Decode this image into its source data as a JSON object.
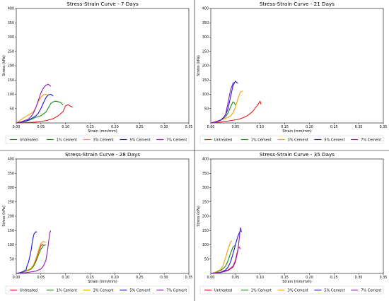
{
  "colors": {
    "Untreated": "#e31a1c",
    "1% Cement": "#1a8a1a",
    "3% Cement": "#f5a000",
    "5% Cement": "#1a1ad6",
    "7% Cement": "#8e1ab8"
  },
  "legend_labels": [
    "Untreated",
    "1% Cement",
    "3% Cement",
    "5% Cement",
    "7% Cement"
  ],
  "chart_data": [
    {
      "type": "line",
      "title": "Stress-Strain Curve - 7 Days",
      "xlabel": "Strain (mm/mm)",
      "ylabel": "Stress (kPa)",
      "xlim": [
        0,
        0.35
      ],
      "ylim": [
        0,
        400
      ],
      "xticks": [
        "0.00",
        "0.05",
        "0.10",
        "0.15",
        "0.20",
        "0.25",
        "0.30",
        "0.35"
      ],
      "yticks": [
        "50",
        "100",
        "150",
        "200",
        "250",
        "300",
        "350",
        "400"
      ],
      "legend_position": "below",
      "series": [
        {
          "name": "Untreated",
          "x": [
            0,
            0.02,
            0.04,
            0.06,
            0.075,
            0.085,
            0.095,
            0.1,
            0.105,
            0.11,
            0.115
          ],
          "y": [
            0,
            1,
            3,
            8,
            15,
            25,
            40,
            60,
            64,
            58,
            55
          ]
        },
        {
          "name": "1% Cement",
          "x": [
            0,
            0.01,
            0.02,
            0.03,
            0.04,
            0.05,
            0.06,
            0.065,
            0.07,
            0.075,
            0.08,
            0.09,
            0.095
          ],
          "y": [
            0,
            2,
            6,
            12,
            20,
            25,
            38,
            52,
            68,
            74,
            76,
            72,
            63
          ]
        },
        {
          "name": "3% Cement",
          "x": [
            0,
            0.005,
            0.01,
            0.015,
            0.02,
            0.025,
            0.03,
            0.035,
            0.04,
            0.045,
            0.05,
            0.055,
            0.06,
            0.065
          ],
          "y": [
            0,
            5,
            12,
            18,
            23,
            28,
            33,
            40,
            55,
            75,
            90,
            98,
            100,
            96
          ]
        },
        {
          "name": "5% Cement",
          "x": [
            0,
            0.01,
            0.02,
            0.025,
            0.03,
            0.035,
            0.04,
            0.045,
            0.05,
            0.055,
            0.06,
            0.065,
            0.07,
            0.075
          ],
          "y": [
            0,
            3,
            7,
            10,
            15,
            20,
            25,
            35,
            50,
            70,
            88,
            98,
            100,
            94
          ]
        },
        {
          "name": "7% Cement",
          "x": [
            0,
            0.005,
            0.01,
            0.015,
            0.02,
            0.025,
            0.03,
            0.035,
            0.04,
            0.045,
            0.05,
            0.055,
            0.06,
            0.065,
            0.07
          ],
          "y": [
            0,
            2,
            4,
            7,
            10,
            14,
            22,
            35,
            55,
            80,
            105,
            122,
            132,
            135,
            128
          ]
        }
      ]
    },
    {
      "type": "line",
      "title": "Stress-Strain Curve - 21 Days",
      "xlabel": "Strain (mm/mm)",
      "ylabel": "Stress (kPa)",
      "xlim": [
        0,
        0.35
      ],
      "ylim": [
        0,
        400
      ],
      "xticks": [
        "0.00",
        "0.05",
        "0.10",
        "0.15",
        "0.20",
        "0.25",
        "0.30",
        "0.35"
      ],
      "yticks": [
        "50",
        "100",
        "150",
        "200",
        "250",
        "300",
        "350",
        "400"
      ],
      "legend_position": "below",
      "series": [
        {
          "name": "Untreated",
          "x": [
            0,
            0.02,
            0.04,
            0.055,
            0.065,
            0.075,
            0.085,
            0.09,
            0.095,
            0.1,
            0.102
          ],
          "y": [
            0,
            3,
            8,
            12,
            18,
            26,
            40,
            52,
            62,
            76,
            65
          ]
        },
        {
          "name": "1% Cement",
          "x": [
            0,
            0.01,
            0.02,
            0.025,
            0.03,
            0.035,
            0.04,
            0.045,
            0.048,
            0.05
          ],
          "y": [
            0,
            4,
            10,
            15,
            22,
            35,
            55,
            74,
            70,
            62
          ]
        },
        {
          "name": "3% Cement",
          "x": [
            0,
            0.01,
            0.02,
            0.03,
            0.04,
            0.045,
            0.05,
            0.055,
            0.06,
            0.065
          ],
          "y": [
            0,
            5,
            10,
            16,
            24,
            35,
            55,
            85,
            108,
            112
          ]
        },
        {
          "name": "5% Cement",
          "x": [
            0,
            0.01,
            0.02,
            0.025,
            0.03,
            0.035,
            0.04,
            0.045,
            0.05,
            0.055
          ],
          "y": [
            0,
            4,
            10,
            18,
            28,
            50,
            90,
            130,
            146,
            138
          ]
        },
        {
          "name": "7% Cement",
          "x": [
            0,
            0.01,
            0.02,
            0.025,
            0.03,
            0.035,
            0.04,
            0.045,
            0.048
          ],
          "y": [
            0,
            3,
            9,
            16,
            30,
            70,
            115,
            138,
            142
          ]
        }
      ]
    },
    {
      "type": "line",
      "title": "Stress-Strain Curve - 28 Days",
      "xlabel": "Strain (mm/mm)",
      "ylabel": "Stress (kPa)",
      "xlim": [
        0,
        0.35
      ],
      "ylim": [
        0,
        400
      ],
      "xticks": [
        "0.00",
        "0.05",
        "0.10",
        "0.15",
        "0.20",
        "0.25",
        "0.30",
        "0.35"
      ],
      "yticks": [
        "50",
        "100",
        "150",
        "200",
        "250",
        "300",
        "350",
        "400"
      ],
      "legend_position": "below",
      "series": [
        {
          "name": "Untreated",
          "x": [
            0,
            0.01,
            0.02,
            0.03,
            0.035,
            0.04,
            0.045,
            0.05,
            0.055
          ],
          "y": [
            0,
            3,
            8,
            16,
            28,
            48,
            75,
            98,
            102
          ]
        },
        {
          "name": "1% Cement",
          "x": [
            0,
            0.01,
            0.02,
            0.03,
            0.035,
            0.04,
            0.045,
            0.05,
            0.055,
            0.06
          ],
          "y": [
            0,
            3,
            8,
            15,
            25,
            42,
            65,
            85,
            98,
            100
          ]
        },
        {
          "name": "3% Cement",
          "x": [
            0,
            0.01,
            0.02,
            0.03,
            0.035,
            0.04,
            0.045,
            0.05,
            0.055,
            0.06
          ],
          "y": [
            0,
            4,
            9,
            18,
            30,
            52,
            80,
            105,
            112,
            108
          ]
        },
        {
          "name": "5% Cement",
          "x": [
            0,
            0.01,
            0.02,
            0.022,
            0.025,
            0.03,
            0.033,
            0.036,
            0.04,
            0.042
          ],
          "y": [
            0,
            4,
            12,
            28,
            40,
            80,
            115,
            138,
            146,
            144
          ]
        },
        {
          "name": "7% Cement",
          "x": [
            0,
            0.02,
            0.04,
            0.05,
            0.055,
            0.06,
            0.063,
            0.066,
            0.068,
            0.07
          ],
          "y": [
            0,
            3,
            8,
            16,
            26,
            45,
            75,
            115,
            142,
            150
          ]
        }
      ]
    },
    {
      "type": "line",
      "title": "Stress-Strain Curve - 35 Days",
      "xlabel": "Strain (mm/mm)",
      "ylabel": "Stress (kPa)",
      "xlim": [
        0,
        0.35
      ],
      "ylim": [
        0,
        400
      ],
      "xticks": [
        "0.00",
        "0.05",
        "0.10",
        "0.15",
        "0.20",
        "0.25",
        "0.30",
        "0.35"
      ],
      "yticks": [
        "50",
        "100",
        "150",
        "200",
        "250",
        "300",
        "350",
        "400"
      ],
      "legend_position": "below",
      "series": [
        {
          "name": "Untreated",
          "x": [
            0,
            0.02,
            0.035,
            0.045,
            0.05,
            0.053,
            0.056,
            0.058,
            0.06
          ],
          "y": [
            0,
            4,
            12,
            25,
            45,
            70,
            90,
            92,
            85
          ]
        },
        {
          "name": "1% Cement",
          "x": [
            0,
            0.01,
            0.02,
            0.03,
            0.035,
            0.04,
            0.045,
            0.05
          ],
          "y": [
            0,
            4,
            10,
            25,
            45,
            70,
            92,
            100
          ]
        },
        {
          "name": "3% Cement",
          "x": [
            0,
            0.01,
            0.02,
            0.025,
            0.03,
            0.035,
            0.04,
            0.043
          ],
          "y": [
            0,
            5,
            14,
            28,
            55,
            85,
            110,
            114
          ]
        },
        {
          "name": "5% Cement",
          "x": [
            0,
            0.02,
            0.03,
            0.035,
            0.04,
            0.045,
            0.05,
            0.055,
            0.06,
            0.063
          ],
          "y": [
            0,
            4,
            12,
            22,
            40,
            68,
            100,
            130,
            150,
            145
          ]
        },
        {
          "name": "7% Cement",
          "x": [
            0,
            0.02,
            0.035,
            0.045,
            0.05,
            0.055,
            0.058,
            0.06,
            0.062
          ],
          "y": [
            0,
            3,
            10,
            22,
            40,
            80,
            125,
            160,
            150
          ]
        }
      ]
    }
  ]
}
